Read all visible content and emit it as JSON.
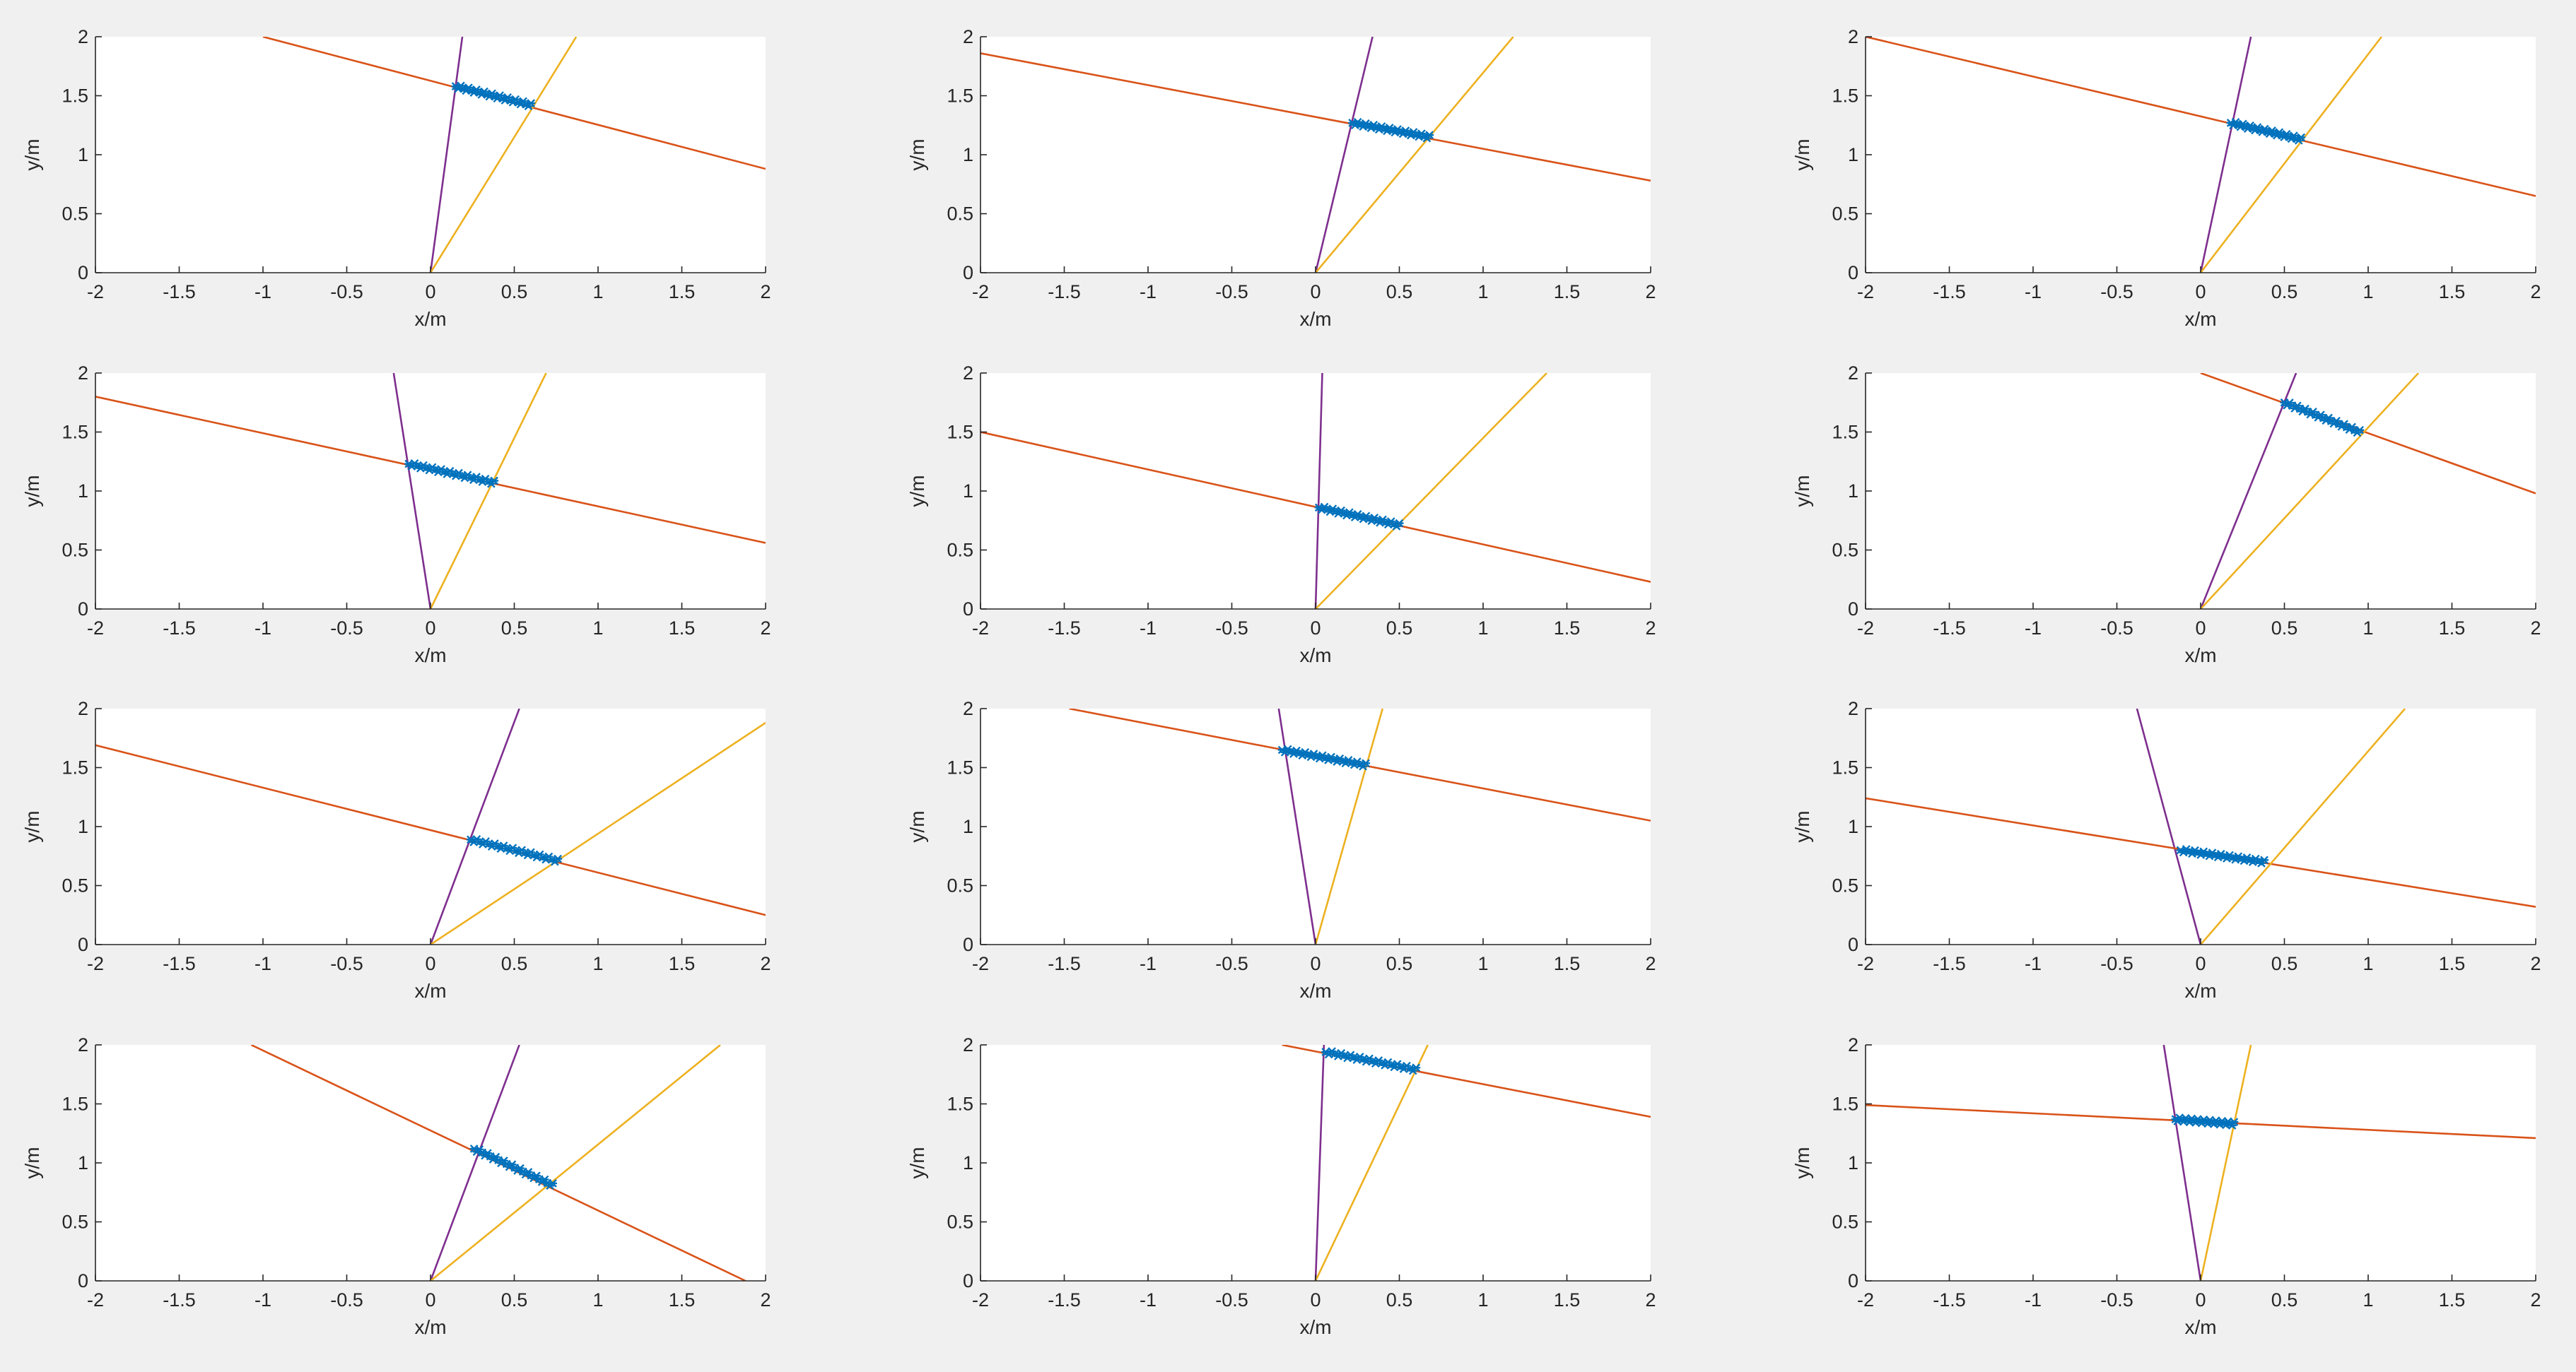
{
  "colors": {
    "figure_bg": "#f0f0f0",
    "axes_bg": "#ffffff",
    "axis": "#262626",
    "purple_line": "#7e2f8e",
    "orange_line": "#d95319",
    "yellow_line": "#edb120",
    "points": "#0072bd"
  },
  "chart_data": [
    {
      "type": "line",
      "xlabel": "x/m",
      "ylabel": "y/m",
      "xlim": [
        -2,
        2
      ],
      "ylim": [
        0,
        2
      ],
      "xticks": [
        "-2",
        "-1.5",
        "-1",
        "-0.5",
        "0",
        "0.5",
        "1",
        "1.5",
        "2"
      ],
      "yticks": [
        "0",
        "0.5",
        "1",
        "1.5",
        "2"
      ],
      "lines": [
        {
          "color": "purple",
          "x": [
            0,
            0.19
          ],
          "y": [
            0,
            2.0
          ]
        },
        {
          "color": "orange",
          "x": [
            -1.0,
            2.0
          ],
          "y": [
            2.0,
            0.88
          ]
        },
        {
          "color": "yellow",
          "x": [
            0,
            0.87
          ],
          "y": [
            0,
            2.0
          ]
        }
      ],
      "scatter": {
        "x": [
          0.15,
          0.6
        ],
        "y": [
          1.58,
          1.42
        ]
      }
    },
    {
      "type": "line",
      "xlabel": "x/m",
      "ylabel": "y/m",
      "xlim": [
        -2,
        2
      ],
      "ylim": [
        0,
        2
      ],
      "xticks": [
        "-2",
        "-1.5",
        "-1",
        "-0.5",
        "0",
        "0.5",
        "1",
        "1.5",
        "2"
      ],
      "yticks": [
        "0",
        "0.5",
        "1",
        "1.5",
        "2"
      ],
      "lines": [
        {
          "color": "purple",
          "x": [
            0,
            0.34
          ],
          "y": [
            0,
            2.0
          ]
        },
        {
          "color": "orange",
          "x": [
            -2.0,
            2.0
          ],
          "y": [
            1.86,
            0.78
          ]
        },
        {
          "color": "yellow",
          "x": [
            0,
            1.18
          ],
          "y": [
            0,
            2.0
          ]
        }
      ],
      "scatter": {
        "x": [
          0.22,
          0.68
        ],
        "y": [
          1.27,
          1.15
        ]
      }
    },
    {
      "type": "line",
      "xlabel": "x/m",
      "ylabel": "y/m",
      "xlim": [
        -2,
        2
      ],
      "ylim": [
        0,
        2
      ],
      "xticks": [
        "-2",
        "-1.5",
        "-1",
        "-0.5",
        "0",
        "0.5",
        "1",
        "1.5",
        "2"
      ],
      "yticks": [
        "0",
        "0.5",
        "1",
        "1.5",
        "2"
      ],
      "lines": [
        {
          "color": "purple",
          "x": [
            0,
            0.3
          ],
          "y": [
            0,
            2.0
          ]
        },
        {
          "color": "orange",
          "x": [
            -2.0,
            2.0
          ],
          "y": [
            2.0,
            0.65
          ]
        },
        {
          "color": "yellow",
          "x": [
            0,
            1.08
          ],
          "y": [
            0,
            2.0
          ]
        }
      ],
      "scatter": {
        "x": [
          0.18,
          0.6
        ],
        "y": [
          1.27,
          1.13
        ]
      }
    },
    {
      "type": "line",
      "xlabel": "x/m",
      "ylabel": "y/m",
      "xlim": [
        -2,
        2
      ],
      "ylim": [
        0,
        2
      ],
      "xticks": [
        "-2",
        "-1.5",
        "-1",
        "-0.5",
        "0",
        "0.5",
        "1",
        "1.5",
        "2"
      ],
      "yticks": [
        "0",
        "0.5",
        "1",
        "1.5",
        "2"
      ],
      "lines": [
        {
          "color": "purple",
          "x": [
            0,
            -0.22
          ],
          "y": [
            0,
            2.0
          ]
        },
        {
          "color": "orange",
          "x": [
            -2.0,
            2.0
          ],
          "y": [
            1.8,
            0.56
          ]
        },
        {
          "color": "yellow",
          "x": [
            0,
            0.69
          ],
          "y": [
            0,
            2.0
          ]
        }
      ],
      "scatter": {
        "x": [
          -0.13,
          0.38
        ],
        "y": [
          1.23,
          1.07
        ]
      }
    },
    {
      "type": "line",
      "xlabel": "x/m",
      "ylabel": "y/m",
      "xlim": [
        -2,
        2
      ],
      "ylim": [
        0,
        2
      ],
      "xticks": [
        "-2",
        "-1.5",
        "-1",
        "-0.5",
        "0",
        "0.5",
        "1",
        "1.5",
        "2"
      ],
      "yticks": [
        "0",
        "0.5",
        "1",
        "1.5",
        "2"
      ],
      "lines": [
        {
          "color": "purple",
          "x": [
            0,
            0.04
          ],
          "y": [
            0,
            2.0
          ]
        },
        {
          "color": "orange",
          "x": [
            -2.0,
            2.0
          ],
          "y": [
            1.5,
            0.23
          ]
        },
        {
          "color": "yellow",
          "x": [
            0,
            1.38
          ],
          "y": [
            0,
            2.0
          ]
        }
      ],
      "scatter": {
        "x": [
          0.02,
          0.5
        ],
        "y": [
          0.86,
          0.71
        ]
      }
    },
    {
      "type": "line",
      "xlabel": "x/m",
      "ylabel": "y/m",
      "xlim": [
        -2,
        2
      ],
      "ylim": [
        0,
        2
      ],
      "xticks": [
        "-2",
        "-1.5",
        "-1",
        "-0.5",
        "0",
        "0.5",
        "1",
        "1.5",
        "2"
      ],
      "yticks": [
        "0",
        "0.5",
        "1",
        "1.5",
        "2"
      ],
      "lines": [
        {
          "color": "purple",
          "x": [
            0,
            0.57
          ],
          "y": [
            0,
            2.0
          ]
        },
        {
          "color": "orange",
          "x": [
            0.0,
            2.0
          ],
          "y": [
            2.0,
            0.98
          ]
        },
        {
          "color": "yellow",
          "x": [
            0,
            1.3
          ],
          "y": [
            0,
            2.0
          ]
        }
      ],
      "scatter": {
        "x": [
          0.5,
          0.95
        ],
        "y": [
          1.75,
          1.5
        ]
      }
    },
    {
      "type": "line",
      "xlabel": "x/m",
      "ylabel": "y/m",
      "xlim": [
        -2,
        2
      ],
      "ylim": [
        0,
        2
      ],
      "xticks": [
        "-2",
        "-1.5",
        "-1",
        "-0.5",
        "0",
        "0.5",
        "1",
        "1.5",
        "2"
      ],
      "yticks": [
        "0",
        "0.5",
        "1",
        "1.5",
        "2"
      ],
      "lines": [
        {
          "color": "purple",
          "x": [
            0,
            0.53
          ],
          "y": [
            0,
            2.0
          ]
        },
        {
          "color": "orange",
          "x": [
            -2.0,
            2.0
          ],
          "y": [
            1.69,
            0.25
          ]
        },
        {
          "color": "yellow",
          "x": [
            0,
            2.0
          ],
          "y": [
            0,
            1.88
          ]
        }
      ],
      "scatter": {
        "x": [
          0.24,
          0.76
        ],
        "y": [
          0.89,
          0.71
        ]
      }
    },
    {
      "type": "line",
      "xlabel": "x/m",
      "ylabel": "y/m",
      "xlim": [
        -2,
        2
      ],
      "ylim": [
        0,
        2
      ],
      "xticks": [
        "-2",
        "-1.5",
        "-1",
        "-0.5",
        "0",
        "0.5",
        "1",
        "1.5",
        "2"
      ],
      "yticks": [
        "0",
        "0.5",
        "1",
        "1.5",
        "2"
      ],
      "lines": [
        {
          "color": "purple",
          "x": [
            0,
            -0.22
          ],
          "y": [
            0,
            2.0
          ]
        },
        {
          "color": "orange",
          "x": [
            -1.47,
            2.0
          ],
          "y": [
            2.0,
            1.05
          ]
        },
        {
          "color": "yellow",
          "x": [
            0,
            0.4
          ],
          "y": [
            0,
            2.0
          ]
        }
      ],
      "scatter": {
        "x": [
          -0.2,
          0.3
        ],
        "y": [
          1.65,
          1.52
        ]
      }
    },
    {
      "type": "line",
      "xlabel": "x/m",
      "ylabel": "y/m",
      "xlim": [
        -2,
        2
      ],
      "ylim": [
        0,
        2
      ],
      "xticks": [
        "-2",
        "-1.5",
        "-1",
        "-0.5",
        "0",
        "0.5",
        "1",
        "1.5",
        "2"
      ],
      "yticks": [
        "0",
        "0.5",
        "1",
        "1.5",
        "2"
      ],
      "lines": [
        {
          "color": "purple",
          "x": [
            0,
            -0.38
          ],
          "y": [
            0,
            2.0
          ]
        },
        {
          "color": "orange",
          "x": [
            -2.0,
            2.0
          ],
          "y": [
            1.24,
            0.32
          ]
        },
        {
          "color": "yellow",
          "x": [
            0,
            1.22
          ],
          "y": [
            0,
            2.0
          ]
        }
      ],
      "scatter": {
        "x": [
          -0.12,
          0.38
        ],
        "y": [
          0.8,
          0.7
        ]
      }
    },
    {
      "type": "line",
      "xlabel": "x/m",
      "ylabel": "y/m",
      "xlim": [
        -2,
        2
      ],
      "ylim": [
        0,
        2
      ],
      "xticks": [
        "-2",
        "-1.5",
        "-1",
        "-0.5",
        "0",
        "0.5",
        "1",
        "1.5",
        "2"
      ],
      "yticks": [
        "0",
        "0.5",
        "1",
        "1.5",
        "2"
      ],
      "lines": [
        {
          "color": "purple",
          "x": [
            0,
            0.53
          ],
          "y": [
            0,
            2.0
          ]
        },
        {
          "color": "orange",
          "x": [
            -1.07,
            1.88
          ],
          "y": [
            2.0,
            0.0
          ]
        },
        {
          "color": "yellow",
          "x": [
            0,
            1.73
          ],
          "y": [
            0,
            2.0
          ]
        }
      ],
      "scatter": {
        "x": [
          0.26,
          0.73
        ],
        "y": [
          1.12,
          0.81
        ]
      }
    },
    {
      "type": "line",
      "xlabel": "x/m",
      "ylabel": "y/m",
      "xlim": [
        -2,
        2
      ],
      "ylim": [
        0,
        2
      ],
      "xticks": [
        "-2",
        "-1.5",
        "-1",
        "-0.5",
        "0",
        "0.5",
        "1",
        "1.5",
        "2"
      ],
      "yticks": [
        "0",
        "0.5",
        "1",
        "1.5",
        "2"
      ],
      "lines": [
        {
          "color": "purple",
          "x": [
            0,
            0.05
          ],
          "y": [
            0,
            2.0
          ]
        },
        {
          "color": "orange",
          "x": [
            -0.2,
            2.0
          ],
          "y": [
            2.0,
            1.39
          ]
        },
        {
          "color": "yellow",
          "x": [
            0,
            0.67
          ],
          "y": [
            0,
            2.0
          ]
        }
      ],
      "scatter": {
        "x": [
          0.06,
          0.6
        ],
        "y": [
          1.94,
          1.79
        ]
      }
    },
    {
      "type": "line",
      "xlabel": "x/m",
      "ylabel": "y/m",
      "xlim": [
        -2,
        2
      ],
      "ylim": [
        0,
        2
      ],
      "xticks": [
        "-2",
        "-1.5",
        "-1",
        "-0.5",
        "0",
        "0.5",
        "1",
        "1.5",
        "2"
      ],
      "yticks": [
        "0",
        "0.5",
        "1",
        "1.5",
        "2"
      ],
      "lines": [
        {
          "color": "purple",
          "x": [
            0,
            -0.22
          ],
          "y": [
            0,
            2.0
          ]
        },
        {
          "color": "orange",
          "x": [
            -2.0,
            2.0
          ],
          "y": [
            1.49,
            1.21
          ]
        },
        {
          "color": "yellow",
          "x": [
            0,
            0.3
          ],
          "y": [
            0,
            2.0
          ]
        }
      ],
      "scatter": {
        "x": [
          -0.15,
          0.2
        ],
        "y": [
          1.37,
          1.33
        ]
      }
    }
  ]
}
